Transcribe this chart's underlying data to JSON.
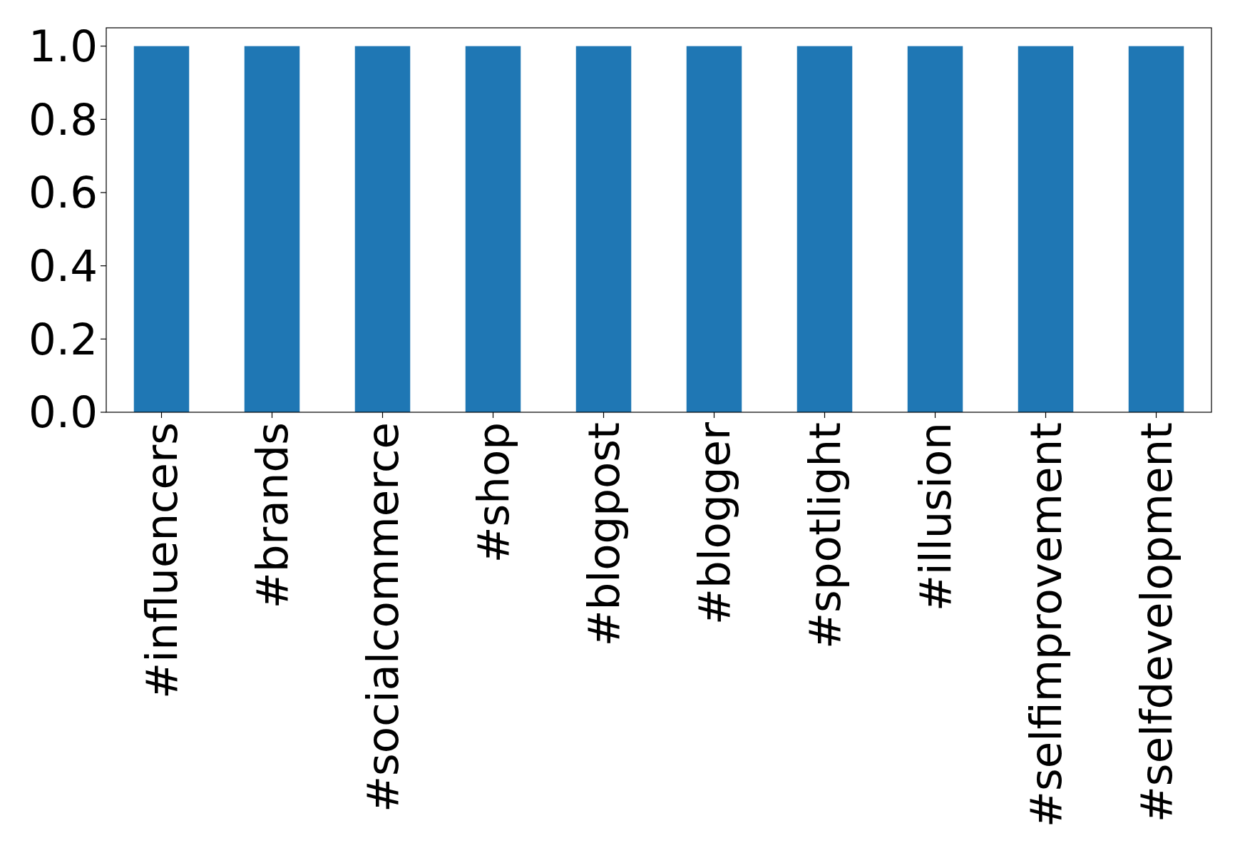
{
  "chart_data": {
    "type": "bar",
    "categories": [
      "#influencers",
      "#brands",
      "#socialcommerce",
      "#shop",
      "#blogpost",
      "#blogger",
      "#spotlight",
      "#illusion",
      "#selfimprovement",
      "#selfdevelopment"
    ],
    "values": [
      1,
      1,
      1,
      1,
      1,
      1,
      1,
      1,
      1,
      1
    ],
    "color": "#1f77b4",
    "ylim": [
      0,
      1.05
    ],
    "yticks": [
      {
        "value": 0,
        "label": "0.0"
      },
      {
        "value": 0.2,
        "label": "0.2"
      },
      {
        "value": 0.4,
        "label": "0.4"
      },
      {
        "value": 0.6,
        "label": "0.6"
      },
      {
        "value": 0.8,
        "label": "0.8"
      },
      {
        "value": 1,
        "label": "1.0"
      }
    ],
    "grid": false
  }
}
